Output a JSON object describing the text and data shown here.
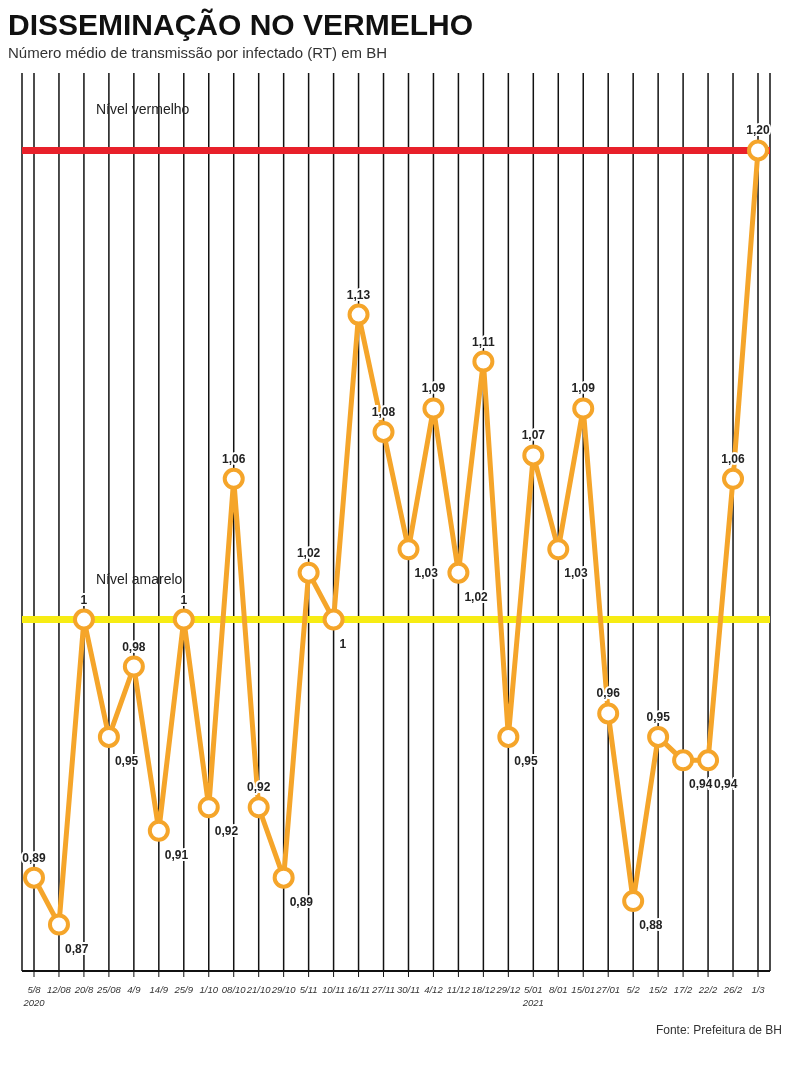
{
  "chart_data": {
    "type": "line",
    "title": "DISSEMINAÇÃO NO VERMELHO",
    "subtitle": "Número médio de transmissão por infectado (RT) em BH",
    "categories": [
      "5/8\n2020",
      "12/08",
      "20/8",
      "25/08",
      "4/9",
      "14/9",
      "25/9",
      "1/10",
      "08/10",
      "21/10",
      "29/10",
      "5/11",
      "10/11",
      "16/11",
      "27/11",
      "30/11",
      "4/12",
      "11/12",
      "18/12",
      "29/12",
      "5/01\n2021",
      "8/01",
      "15/01",
      "27/01",
      "5/2",
      "15/2",
      "17/2",
      "22/2",
      "26/2",
      "1/3"
    ],
    "series": [
      {
        "color": "#f5a52a",
        "values": [
          0.89,
          0.87,
          1,
          0.95,
          0.98,
          0.91,
          1,
          0.92,
          1.06,
          0.92,
          0.89,
          1.02,
          1,
          1.13,
          1.08,
          1.03,
          1.09,
          1.02,
          1.11,
          0.95,
          1.07,
          1.03,
          1.09,
          0.96,
          0.88,
          0.95,
          0.94,
          0.94,
          1.06,
          1.2
        ],
        "value_labels": [
          "0,89",
          "0,87",
          "1",
          "0,95",
          "0,98",
          "0,91",
          "1",
          "0,92",
          "1,06",
          "0,92",
          "0,89",
          "1,02",
          "1",
          "1,13",
          "1,08",
          "1,03",
          "1,09",
          "1,02",
          "1,11",
          "0,95",
          "1,07",
          "1,03",
          "1,09",
          "0,96",
          "0,88",
          "0,95",
          "0,94",
          "0,94",
          "1,06",
          "1,20"
        ]
      }
    ],
    "ref_lines": [
      {
        "axis": "y",
        "value": 1,
        "label": "Nível amarelo",
        "color": "#f7ec13"
      },
      {
        "axis": "y",
        "value": 1.2,
        "label": "Nível vermelho",
        "color": "#e8202a"
      }
    ],
    "annotations": [
      "Fonte: Prefeitura de BH"
    ],
    "marker": "circle",
    "line_style": "solid",
    "grid": "x",
    "legend": false
  }
}
